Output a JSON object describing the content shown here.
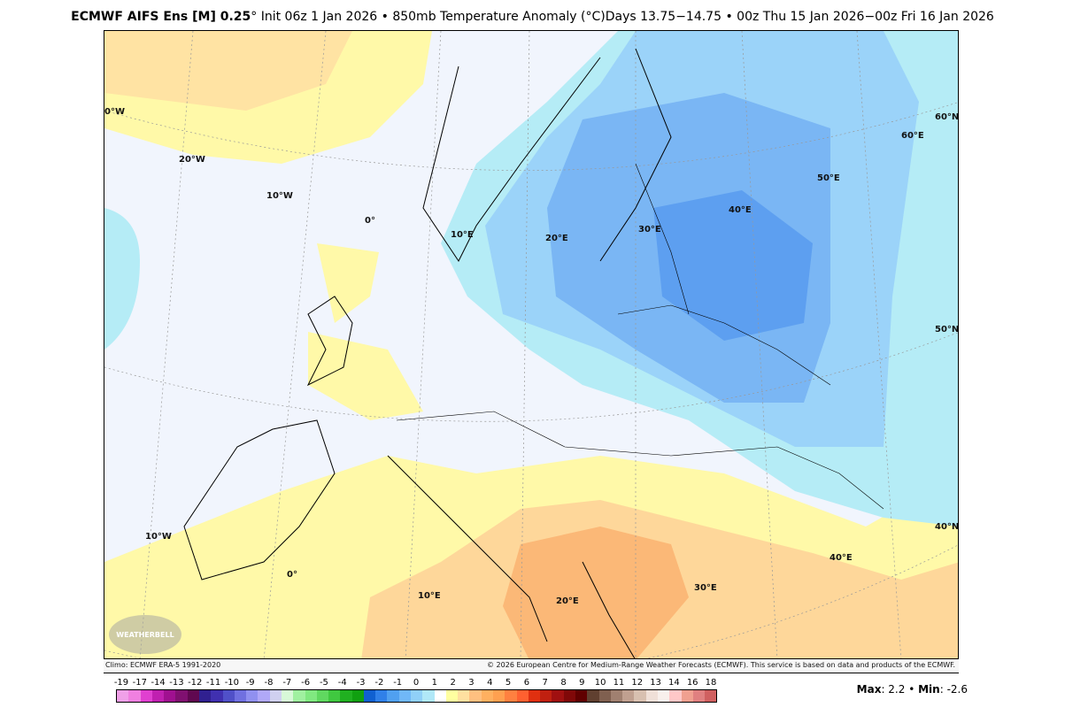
{
  "title": {
    "model": "ECMWF AIFS Ens [M] 0.25",
    "deg": "°",
    "rest": " Init 06z 1 Jan 2026 • 850mb Temperature Anomaly (°C)Days 13.75−14.75 • 00z Thu 15 Jan 2026−00z Fri 16 Jan 2026"
  },
  "credits": {
    "climo": "Climo: ECMWF ERA-5 1991-2020",
    "copyright": "© 2026 European Centre for Medium-Range Weather Forecasts (ECMWF). This service is based on data and products of the ECMWF."
  },
  "logo": "WEATHERBELL",
  "grid_labels": [
    "0°W",
    "20°W",
    "10°W",
    "0°",
    "10°E",
    "20°E",
    "30°E",
    "40°E",
    "50°E",
    "60°E",
    "60°N",
    "50°N",
    "40°N",
    "10°W",
    "0°",
    "10°E",
    "20°E",
    "30°E",
    "40°E"
  ],
  "colorbar": {
    "labels": [
      "-19",
      "-17",
      "-14",
      "-13",
      "-12",
      "-11",
      "-10",
      "-9",
      "-8",
      "-7",
      "-6",
      "-5",
      "-4",
      "-3",
      "-2",
      "-1",
      "0",
      "1",
      "2",
      "3",
      "4",
      "5",
      "6",
      "7",
      "8",
      "9",
      "10",
      "11",
      "12",
      "13",
      "14",
      "16",
      "18"
    ],
    "colors": [
      "#f0a0e8",
      "#f080e0",
      "#e040d0",
      "#c020b0",
      "#a01090",
      "#801070",
      "#600850",
      "#302090",
      "#4030b0",
      "#5050c8",
      "#7070e0",
      "#9090f0",
      "#b0a8f8",
      "#d0d0f0",
      "#d8f8d8",
      "#a0f0a0",
      "#80e880",
      "#60d860",
      "#40c840",
      "#20b020",
      "#10a010",
      "#1060d0",
      "#3080e8",
      "#50a0f0",
      "#70b8f8",
      "#90d0f8",
      "#b0e8f8",
      "#ffffff",
      "#ffffa0",
      "#ffe0a0",
      "#ffc080",
      "#ffb060",
      "#ffa050",
      "#ff8040",
      "#ff6030",
      "#e03010",
      "#c02010",
      "#a01010",
      "#800808",
      "#600000",
      "#604030",
      "#806050",
      "#a08070",
      "#c0a090",
      "#d8c0b0",
      "#f0e0d8",
      "#f8f0ec",
      "#ffc8c8",
      "#f0a090",
      "#e08080",
      "#d06060"
    ]
  },
  "stats": {
    "max_label": "Max",
    "max": "2.2",
    "sep": " • ",
    "min_label": "Min",
    "min": "-2.6"
  }
}
